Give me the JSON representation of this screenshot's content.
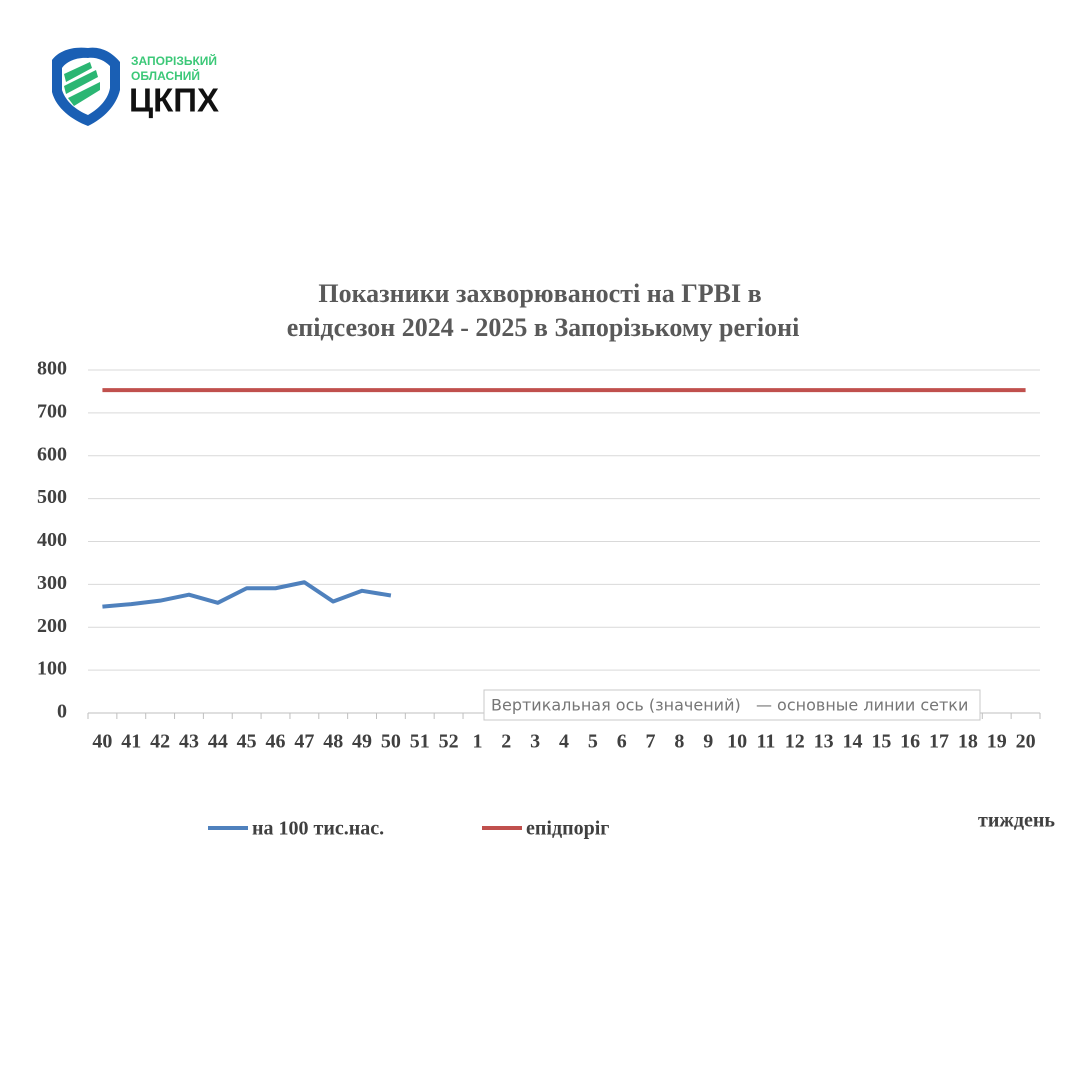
{
  "logo": {
    "line1": "ЗАПОРІЗЬКИЙ",
    "line2": "ОБЛАСНИЙ",
    "name": "ЦКПХ"
  },
  "chart_data": {
    "type": "line",
    "title": [
      "Показники захворюваності на ГРВІ в",
      "епідсезон 2024 - 2025 в Запорізькому регіоні"
    ],
    "x_label": "тиждень",
    "tooltip": "Вертикальная ось (значений)   — основные линии сетки",
    "categories": [
      "40",
      "41",
      "42",
      "43",
      "44",
      "45",
      "46",
      "47",
      "48",
      "49",
      "50",
      "51",
      "52",
      "1",
      "2",
      "3",
      "4",
      "5",
      "6",
      "7",
      "8",
      "9",
      "10",
      "11",
      "12",
      "13",
      "14",
      "15",
      "16",
      "17",
      "18",
      "19",
      "20"
    ],
    "series": [
      {
        "name": "на 100 тис.нас.",
        "color": "#4f81bd",
        "values": [
          248,
          254,
          262,
          276,
          257,
          291,
          291,
          305,
          260,
          285,
          274,
          null,
          null,
          null,
          null,
          null,
          null,
          null,
          null,
          null,
          null,
          null,
          null,
          null,
          null,
          null,
          null,
          null,
          null,
          null,
          null,
          null,
          null
        ]
      },
      {
        "name": "епідпоріг",
        "color": "#c0504d",
        "values": [
          753,
          753,
          753,
          753,
          753,
          753,
          753,
          753,
          753,
          753,
          753,
          753,
          753,
          753,
          753,
          753,
          753,
          753,
          753,
          753,
          753,
          753,
          753,
          753,
          753,
          753,
          753,
          753,
          753,
          753,
          753,
          753,
          753
        ]
      }
    ],
    "ylim": [
      0,
      800
    ],
    "yticks": [
      0,
      100,
      200,
      300,
      400,
      500,
      600,
      700,
      800
    ],
    "grid": true,
    "legend": "bottom"
  }
}
